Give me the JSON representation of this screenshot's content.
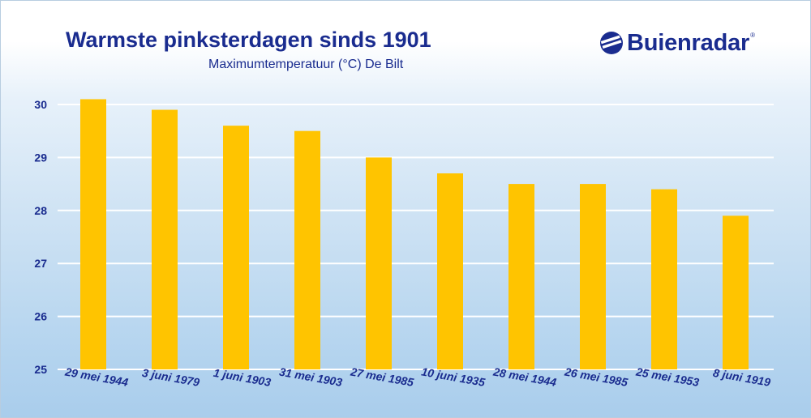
{
  "header": {
    "title": "Warmste pinksterdagen sinds 1901",
    "subtitle": "Maximumtemperatuur (°C) De Bilt",
    "logo_text": "Buienradar",
    "logo_mark": "®"
  },
  "colors": {
    "bar": "#ffc400",
    "title": "#1a2c8f",
    "axis_text": "#1a2c8f",
    "grid": "#ffffff"
  },
  "chart_data": {
    "type": "bar",
    "categories": [
      "29 mei 1944",
      "3 juni 1979",
      "1 juni 1903",
      "31 mei 1903",
      "27 mei 1985",
      "10 juni 1935",
      "28 mei 1944",
      "26 mei 1985",
      "25 mei 1953",
      "8 juni 1919"
    ],
    "values": [
      30.1,
      29.9,
      29.6,
      29.5,
      29.0,
      28.7,
      28.5,
      28.5,
      28.4,
      27.9
    ],
    "title": "Warmste pinksterdagen sinds 1901",
    "subtitle": "Maximumtemperatuur (°C) De Bilt",
    "xlabel": "",
    "ylabel": "",
    "ylim": [
      25,
      30
    ],
    "yticks": [
      25,
      26,
      27,
      28,
      29,
      30
    ],
    "grid": true,
    "legend": "none"
  }
}
